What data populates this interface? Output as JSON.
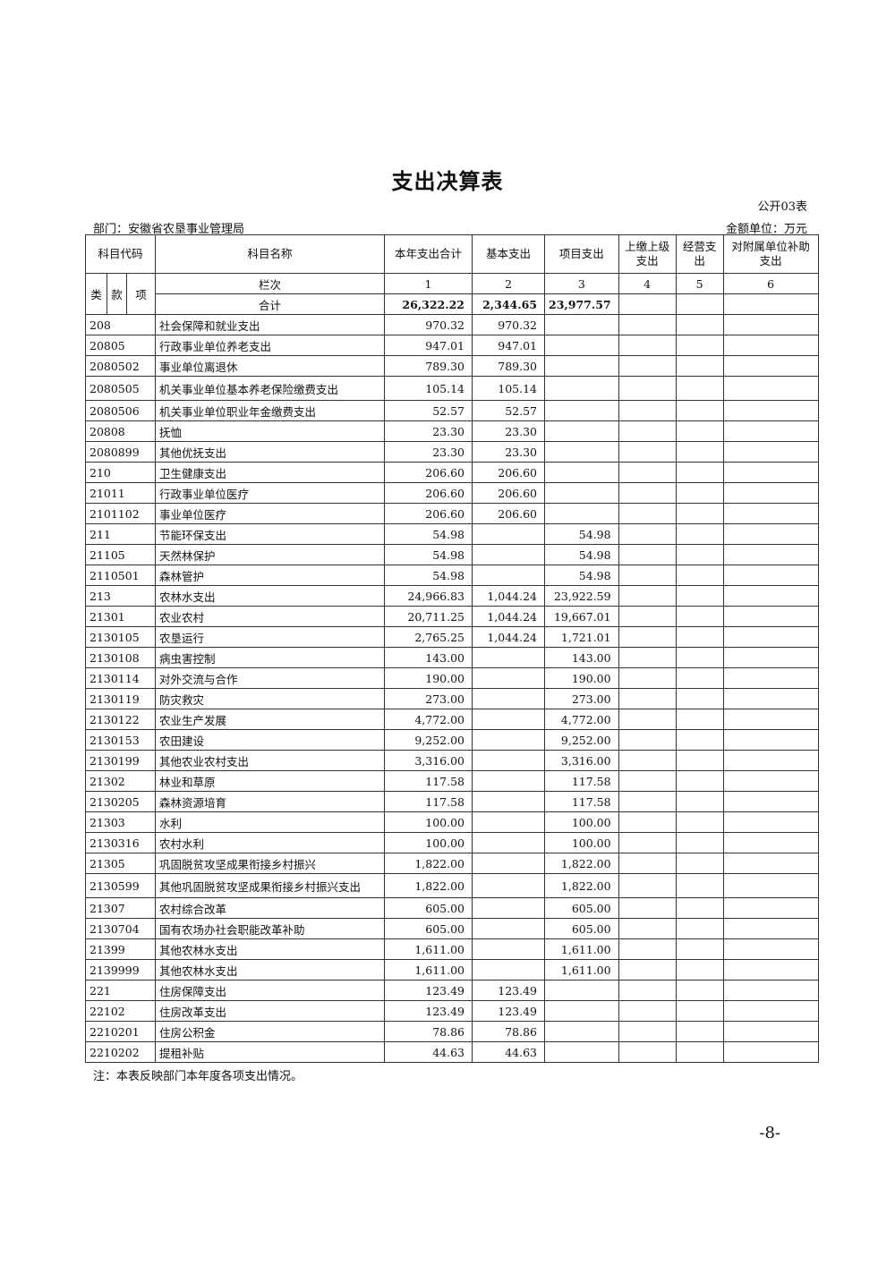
{
  "title": "支出决算表",
  "form_no": "公开03表",
  "department": "部门：安徽省农垦事业管理局",
  "unit": "金额单位：万元",
  "headers": {
    "code": "科目代码",
    "name": "科目名称",
    "cols": [
      "本年支出合计",
      "基本支出",
      "项目支出",
      "上缴上级支出",
      "经营支出",
      "对附属单位补助支出"
    ],
    "lei": "类",
    "kuan": "款",
    "xiang": "项",
    "lanci": "栏次",
    "col_numbers": [
      "1",
      "2",
      "3",
      "4",
      "5",
      "6"
    ]
  },
  "total": {
    "label": "合计",
    "values": [
      "26,322.22",
      "2,344.65",
      "23,977.57",
      "",
      "",
      ""
    ]
  },
  "rows": [
    [
      "208",
      "社会保障和就业支出",
      "970.32",
      "970.32",
      ""
    ],
    [
      "20805",
      "行政事业单位养老支出",
      "947.01",
      "947.01",
      ""
    ],
    [
      "2080502",
      "事业单位离退休",
      "789.30",
      "789.30",
      ""
    ],
    [
      "2080505",
      "机关事业单位基本养老保险缴费支出",
      "105.14",
      "105.14",
      ""
    ],
    [
      "2080506",
      "机关事业单位职业年金缴费支出",
      "52.57",
      "52.57",
      ""
    ],
    [
      "20808",
      "抚恤",
      "23.30",
      "23.30",
      ""
    ],
    [
      "2080899",
      "其他优抚支出",
      "23.30",
      "23.30",
      ""
    ],
    [
      "210",
      "卫生健康支出",
      "206.60",
      "206.60",
      ""
    ],
    [
      "21011",
      "行政事业单位医疗",
      "206.60",
      "206.60",
      ""
    ],
    [
      "2101102",
      "事业单位医疗",
      "206.60",
      "206.60",
      ""
    ],
    [
      "211",
      "节能环保支出",
      "54.98",
      "",
      "54.98"
    ],
    [
      "21105",
      "天然林保护",
      "54.98",
      "",
      "54.98"
    ],
    [
      "2110501",
      "森林管护",
      "54.98",
      "",
      "54.98"
    ],
    [
      "213",
      "农林水支出",
      "24,966.83",
      "1,044.24",
      "23,922.59"
    ],
    [
      "21301",
      "农业农村",
      "20,711.25",
      "1,044.24",
      "19,667.01"
    ],
    [
      "2130105",
      "农垦运行",
      "2,765.25",
      "1,044.24",
      "1,721.01"
    ],
    [
      "2130108",
      "病虫害控制",
      "143.00",
      "",
      "143.00"
    ],
    [
      "2130114",
      "对外交流与合作",
      "190.00",
      "",
      "190.00"
    ],
    [
      "2130119",
      "防灾救灾",
      "273.00",
      "",
      "273.00"
    ],
    [
      "2130122",
      "农业生产发展",
      "4,772.00",
      "",
      "4,772.00"
    ],
    [
      "2130153",
      "农田建设",
      "9,252.00",
      "",
      "9,252.00"
    ],
    [
      "2130199",
      "其他农业农村支出",
      "3,316.00",
      "",
      "3,316.00"
    ],
    [
      "21302",
      "林业和草原",
      "117.58",
      "",
      "117.58"
    ],
    [
      "2130205",
      "森林资源培育",
      "117.58",
      "",
      "117.58"
    ],
    [
      "21303",
      "水利",
      "100.00",
      "",
      "100.00"
    ],
    [
      "2130316",
      "农村水利",
      "100.00",
      "",
      "100.00"
    ],
    [
      "21305",
      "巩固脱贫攻坚成果衔接乡村振兴",
      "1,822.00",
      "",
      "1,822.00"
    ],
    [
      "2130599",
      "其他巩固脱贫攻坚成果衔接乡村振兴支出",
      "1,822.00",
      "",
      "1,822.00"
    ],
    [
      "21307",
      "农村综合改革",
      "605.00",
      "",
      "605.00"
    ],
    [
      "2130704",
      "国有农场办社会职能改革补助",
      "605.00",
      "",
      "605.00"
    ],
    [
      "21399",
      "其他农林水支出",
      "1,611.00",
      "",
      "1,611.00"
    ],
    [
      "2139999",
      "其他农林水支出",
      "1,611.00",
      "",
      "1,611.00"
    ],
    [
      "221",
      "住房保障支出",
      "123.49",
      "123.49",
      ""
    ],
    [
      "22102",
      "住房改革支出",
      "123.49",
      "123.49",
      ""
    ],
    [
      "2210201",
      "住房公积金",
      "78.86",
      "78.86",
      ""
    ],
    [
      "2210202",
      "提租补贴",
      "44.63",
      "44.63",
      ""
    ]
  ],
  "note": "注：本表反映部门本年度各项支出情况。",
  "page_number": "-8-"
}
